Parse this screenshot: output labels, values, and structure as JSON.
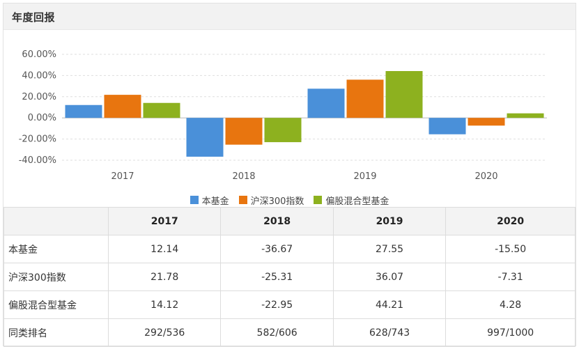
{
  "panel": {
    "title": "年度回报"
  },
  "colors": {
    "fund": "#4a90d9",
    "index": "#e8750f",
    "peer": "#8db11f"
  },
  "chart_data": {
    "type": "bar",
    "categories": [
      "2017",
      "2018",
      "2019",
      "2020"
    ],
    "series": [
      {
        "name": "本基金",
        "values": [
          12.14,
          -36.67,
          27.55,
          -15.5
        ]
      },
      {
        "name": "沪深300指数",
        "values": [
          21.78,
          -25.31,
          36.07,
          -7.31
        ]
      },
      {
        "name": "偏股混合型基金",
        "values": [
          14.12,
          -22.95,
          44.21,
          4.28
        ]
      }
    ],
    "yticks": [
      "60.00%",
      "40.00%",
      "20.00%",
      "0.00%",
      "-20.00%",
      "-40.00%"
    ],
    "ytick_values": [
      60,
      40,
      20,
      0,
      -20,
      -40
    ],
    "ylim": [
      -40,
      60
    ],
    "grid": true,
    "legend_position": "bottom"
  },
  "table": {
    "columns": [
      "2017",
      "2018",
      "2019",
      "2020"
    ],
    "rows": [
      {
        "label": "本基金",
        "values": [
          "12.14",
          "-36.67",
          "27.55",
          "-15.50"
        ]
      },
      {
        "label": "沪深300指数",
        "values": [
          "21.78",
          "-25.31",
          "36.07",
          "-7.31"
        ]
      },
      {
        "label": "偏股混合型基金",
        "values": [
          "14.12",
          "-22.95",
          "44.21",
          "4.28"
        ]
      },
      {
        "label": "同类排名",
        "values": [
          "292/536",
          "582/606",
          "628/743",
          "997/1000"
        ]
      }
    ]
  }
}
